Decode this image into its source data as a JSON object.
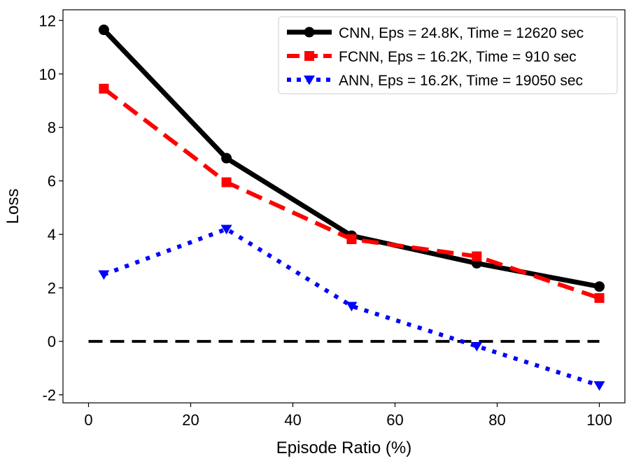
{
  "chart_data": {
    "type": "line",
    "xlabel": "Episode Ratio (%)",
    "ylabel": "Loss",
    "xlim": [
      -5,
      105
    ],
    "ylim": [
      -2.3,
      12.4
    ],
    "xticks": [
      0,
      20,
      40,
      60,
      80,
      100
    ],
    "yticks": [
      -2,
      0,
      2,
      4,
      6,
      8,
      10,
      12
    ],
    "grid": false,
    "legend_position": "top-right",
    "x": [
      3,
      27,
      51.5,
      76,
      100
    ],
    "series": [
      {
        "name": "CNN, Eps = 24.8K, Time = 12620 sec",
        "values": [
          11.65,
          6.85,
          3.95,
          2.92,
          2.05
        ],
        "color": "#000000",
        "linestyle": "solid",
        "marker": "circle"
      },
      {
        "name": "FCNN, Eps = 16.2K, Time = 910 sec",
        "values": [
          9.45,
          5.95,
          3.82,
          3.18,
          1.62
        ],
        "color": "#ff0000",
        "linestyle": "dashed",
        "marker": "square"
      },
      {
        "name": "ANN, Eps = 16.2K, Time = 19050 sec",
        "values": [
          2.5,
          4.2,
          1.32,
          -0.18,
          -1.65
        ],
        "color": "#0000ff",
        "linestyle": "dotted",
        "marker": "triangle-down"
      }
    ],
    "reference_line": {
      "name": "zero line",
      "x": [
        0,
        100
      ],
      "y": 0,
      "color": "#000000",
      "linestyle": "dashed"
    }
  }
}
